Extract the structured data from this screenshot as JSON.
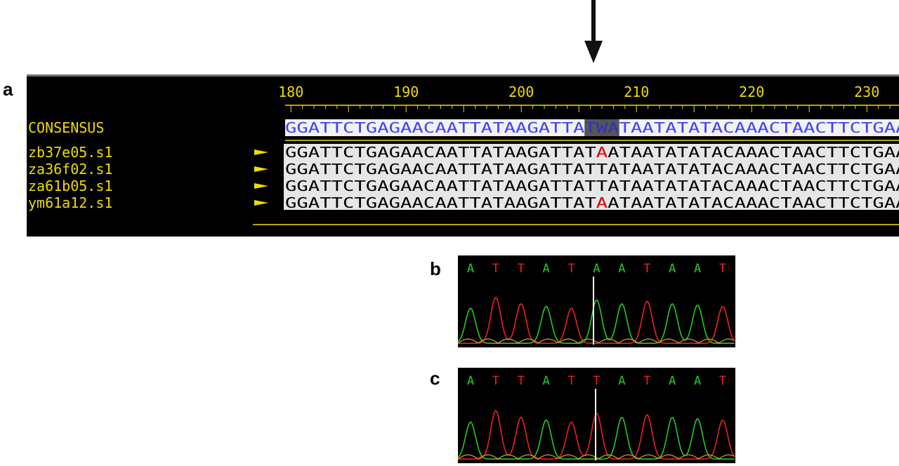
{
  "panel_a": {
    "label": "a",
    "ruler": [
      180,
      190,
      200,
      210,
      220,
      230
    ],
    "consensus": {
      "name": "CONSENSUS",
      "seq": [
        "GGATTCTGAGAACAATTATAAGATTA",
        "TWA",
        "TAATATATACAAACTAACTTCTGAA"
      ]
    },
    "reads": [
      {
        "name": "zb37e05.s1",
        "seq": [
          "GGATTCTGAGAACAATTATAAGATTAT",
          "A",
          "ATAATATATACAAACTAACTTCTGAA"
        ],
        "highlight": true
      },
      {
        "name": "za36f02.s1",
        "seq": [
          "GGATTCTGAGAACAATTATAAGATTAT",
          "T",
          "ATAATATATACAAACTAACTTCTGAA"
        ],
        "highlight": false
      },
      {
        "name": "za61b05.s1",
        "seq": [
          "GGATTCTGAGAACAATTATAAGATTAT",
          "T",
          "ATAATATATACAAACTAACTTCTGAA"
        ],
        "highlight": false
      },
      {
        "name": "ym61a12.s1",
        "seq": [
          "GGATTCTGAGAACAATTATAAGATTAT",
          "A",
          "ATAATATATACAAACTAACTTCTGAA"
        ],
        "highlight": true
      }
    ]
  },
  "panel_b": {
    "label": "b",
    "bases": [
      "A",
      "T",
      "T",
      "A",
      "T",
      "A",
      "A",
      "T",
      "A",
      "A",
      "T"
    ]
  },
  "panel_c": {
    "label": "c",
    "bases": [
      "A",
      "T",
      "T",
      "A",
      "T",
      "T",
      "A",
      "T",
      "A",
      "A",
      "T"
    ]
  }
}
